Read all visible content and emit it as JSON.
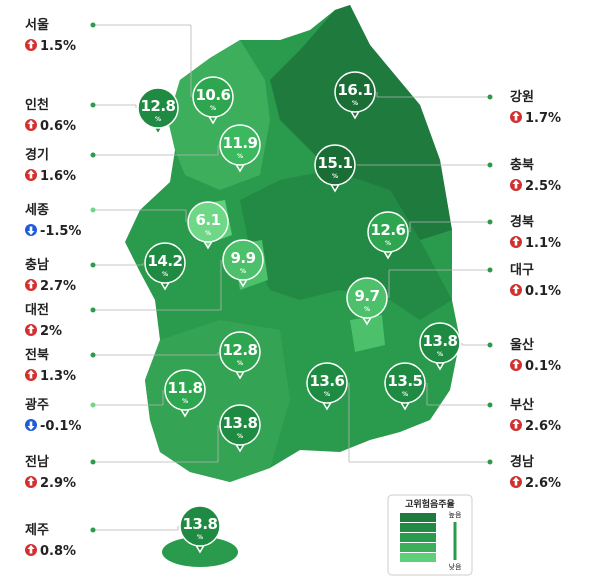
{
  "regions": [
    {
      "name": "서울",
      "change": "1.5%",
      "trend": "up",
      "value": "10.6"
    },
    {
      "name": "인천",
      "change": "0.6%",
      "trend": "up",
      "value": "12.8"
    },
    {
      "name": "경기",
      "change": "1.6%",
      "trend": "up",
      "value": "11.9"
    },
    {
      "name": "세종",
      "change": "-1.5%",
      "trend": "down",
      "value": "6.1"
    },
    {
      "name": "충남",
      "change": "2.7%",
      "trend": "up",
      "value": "14.2"
    },
    {
      "name": "대전",
      "change": "2%",
      "trend": "up",
      "value": "9.9"
    },
    {
      "name": "전북",
      "change": "1.3%",
      "trend": "up",
      "value": "12.8"
    },
    {
      "name": "광주",
      "change": "-0.1%",
      "trend": "down",
      "value": "11.8"
    },
    {
      "name": "전남",
      "change": "2.9%",
      "trend": "up",
      "value": "13.8"
    },
    {
      "name": "제주",
      "change": "0.8%",
      "trend": "up",
      "value": "13.8"
    },
    {
      "name": "강원",
      "change": "1.7%",
      "trend": "up",
      "value": "16.1"
    },
    {
      "name": "충북",
      "change": "2.5%",
      "trend": "up",
      "value": "15.1"
    },
    {
      "name": "경북",
      "change": "1.1%",
      "trend": "up",
      "value": "12.6"
    },
    {
      "name": "대구",
      "change": "0.1%",
      "trend": "up",
      "value": "9.7"
    },
    {
      "name": "울산",
      "change": "0.1%",
      "trend": "up",
      "value": "13.8"
    },
    {
      "name": "부산",
      "change": "2.6%",
      "trend": "up",
      "value": "13.5"
    },
    {
      "name": "경남",
      "change": "2.6%",
      "trend": "up",
      "value": "13.6"
    }
  ],
  "pin_unit": "%",
  "legend": {
    "title": "고위험음주율",
    "high": "높음",
    "low": "낮음"
  }
}
